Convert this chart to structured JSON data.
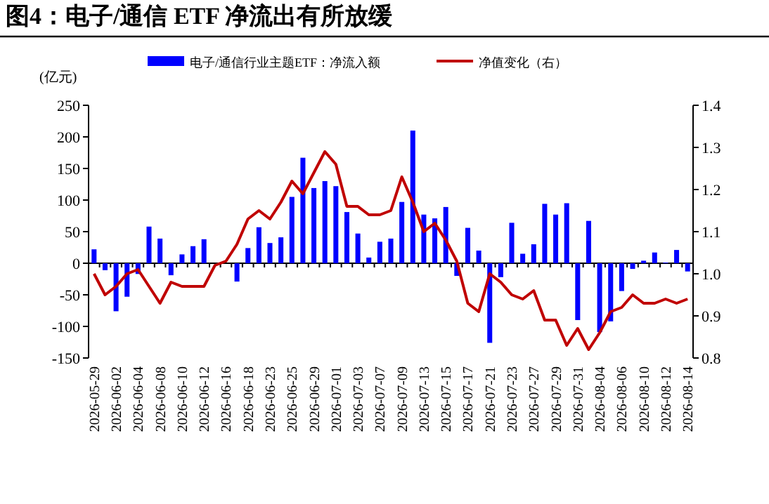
{
  "chart_data": {
    "type": "bar",
    "title": "图4：电子/通信 ETF 净流出有所放缓",
    "ylabel": "(亿元)",
    "legend": "top",
    "categories": [
      "2026-05-29",
      null,
      "2026-06-02",
      null,
      "2026-06-04",
      null,
      "2026-06-08",
      null,
      "2026-06-10",
      null,
      "2026-06-12",
      null,
      "2026-06-16",
      null,
      "2026-06-18",
      null,
      "2026-06-23",
      null,
      "2026-06-25",
      null,
      "2026-06-29",
      null,
      "2026-07-01",
      null,
      "2026-07-03",
      null,
      "2026-07-07",
      null,
      "2026-07-09",
      null,
      "2026-07-13",
      null,
      "2026-07-15",
      null,
      "2026-07-17",
      null,
      "2026-07-21",
      null,
      "2026-07-23",
      null,
      "2026-07-27",
      null,
      "2026-07-29",
      null,
      "2026-07-31",
      null,
      "2026-08-04",
      null,
      "2026-08-06",
      null,
      "2026-08-10",
      null,
      "2026-08-12",
      null,
      "2026-08-14"
    ],
    "ylim": [
      -150,
      250
    ],
    "yticks": [
      -150,
      -100,
      -50,
      0,
      50,
      100,
      150,
      200,
      250
    ],
    "y2lim": [
      0.8,
      1.4
    ],
    "y2ticks": [
      0.8,
      0.9,
      {
        "value": 1,
        "label": "1.0"
      },
      1.1,
      1.2,
      1.3,
      1.4
    ],
    "series": [
      {
        "name": "电子/通信行业主题ETF：净流入额",
        "color": "#0000ff",
        "values": [
          22,
          -11,
          -76,
          -53,
          -17,
          58,
          39,
          -19,
          14,
          27,
          38,
          null,
          null,
          -29,
          24,
          57,
          32,
          41,
          105,
          167,
          119,
          130,
          122,
          81,
          47,
          9,
          34,
          39,
          97,
          210,
          77,
          71,
          89,
          -20,
          56,
          20,
          -126,
          -22,
          64,
          15,
          30,
          94,
          77,
          95,
          -90,
          67,
          -109,
          -92,
          -44,
          -9,
          4,
          17,
          1,
          21,
          -13
        ]
      },
      {
        "name": "净值变化（右）",
        "type": "line",
        "axis": "y2",
        "color": "#c00000",
        "values": [
          1.0,
          0.95,
          0.97,
          1.0,
          1.01,
          0.97,
          0.93,
          0.98,
          0.97,
          0.97,
          0.97,
          1.02,
          1.03,
          1.07,
          1.13,
          1.15,
          1.13,
          1.17,
          1.22,
          1.19,
          1.24,
          1.29,
          1.26,
          1.16,
          1.16,
          1.14,
          1.14,
          1.15,
          1.23,
          1.17,
          1.1,
          1.12,
          1.08,
          1.03,
          0.93,
          0.91,
          1.0,
          0.98,
          0.95,
          0.94,
          0.96,
          0.89,
          0.89,
          0.83,
          0.87,
          0.82,
          0.86,
          0.91,
          0.92,
          0.95,
          0.93,
          0.93,
          0.94,
          0.93,
          0.94
        ]
      }
    ]
  }
}
